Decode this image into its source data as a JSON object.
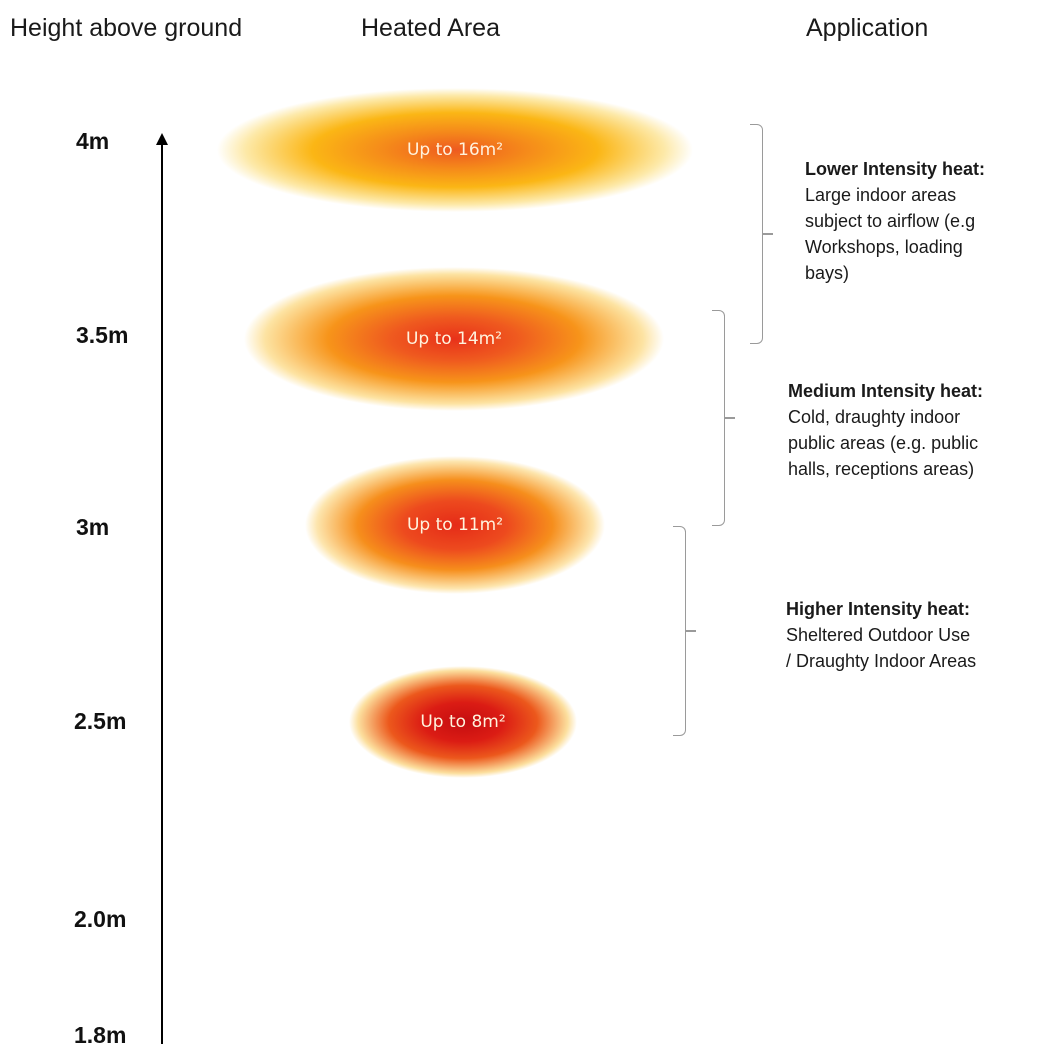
{
  "headers": {
    "height": "Height above ground",
    "area": "Heated Area",
    "application": "Application"
  },
  "heights": [
    "4m",
    "3.5m",
    "3m",
    "2.5m",
    "2.0m",
    "1.8m"
  ],
  "areas": [
    "Up to 16m²",
    "Up to 14m²",
    "Up to 11m²",
    "Up to 8m²"
  ],
  "applications": [
    {
      "title": "Lower Intensity heat:",
      "description": "Large indoor areas\nsubject to airflow (e.g\nWorkshops, loading\nbays)"
    },
    {
      "title": "Medium Intensity heat:",
      "description": "Cold, draughty indoor\npublic areas (e.g. public\nhalls, receptions areas)"
    },
    {
      "title": "Higher Intensity heat:",
      "description": "Sheltered Outdoor Use\n/ Draughty Indoor Areas"
    }
  ],
  "colors": {
    "outer_glow": "#fde9a8",
    "mid": "#fbb615",
    "hot": "#e8311a",
    "core": "#c50d10"
  }
}
